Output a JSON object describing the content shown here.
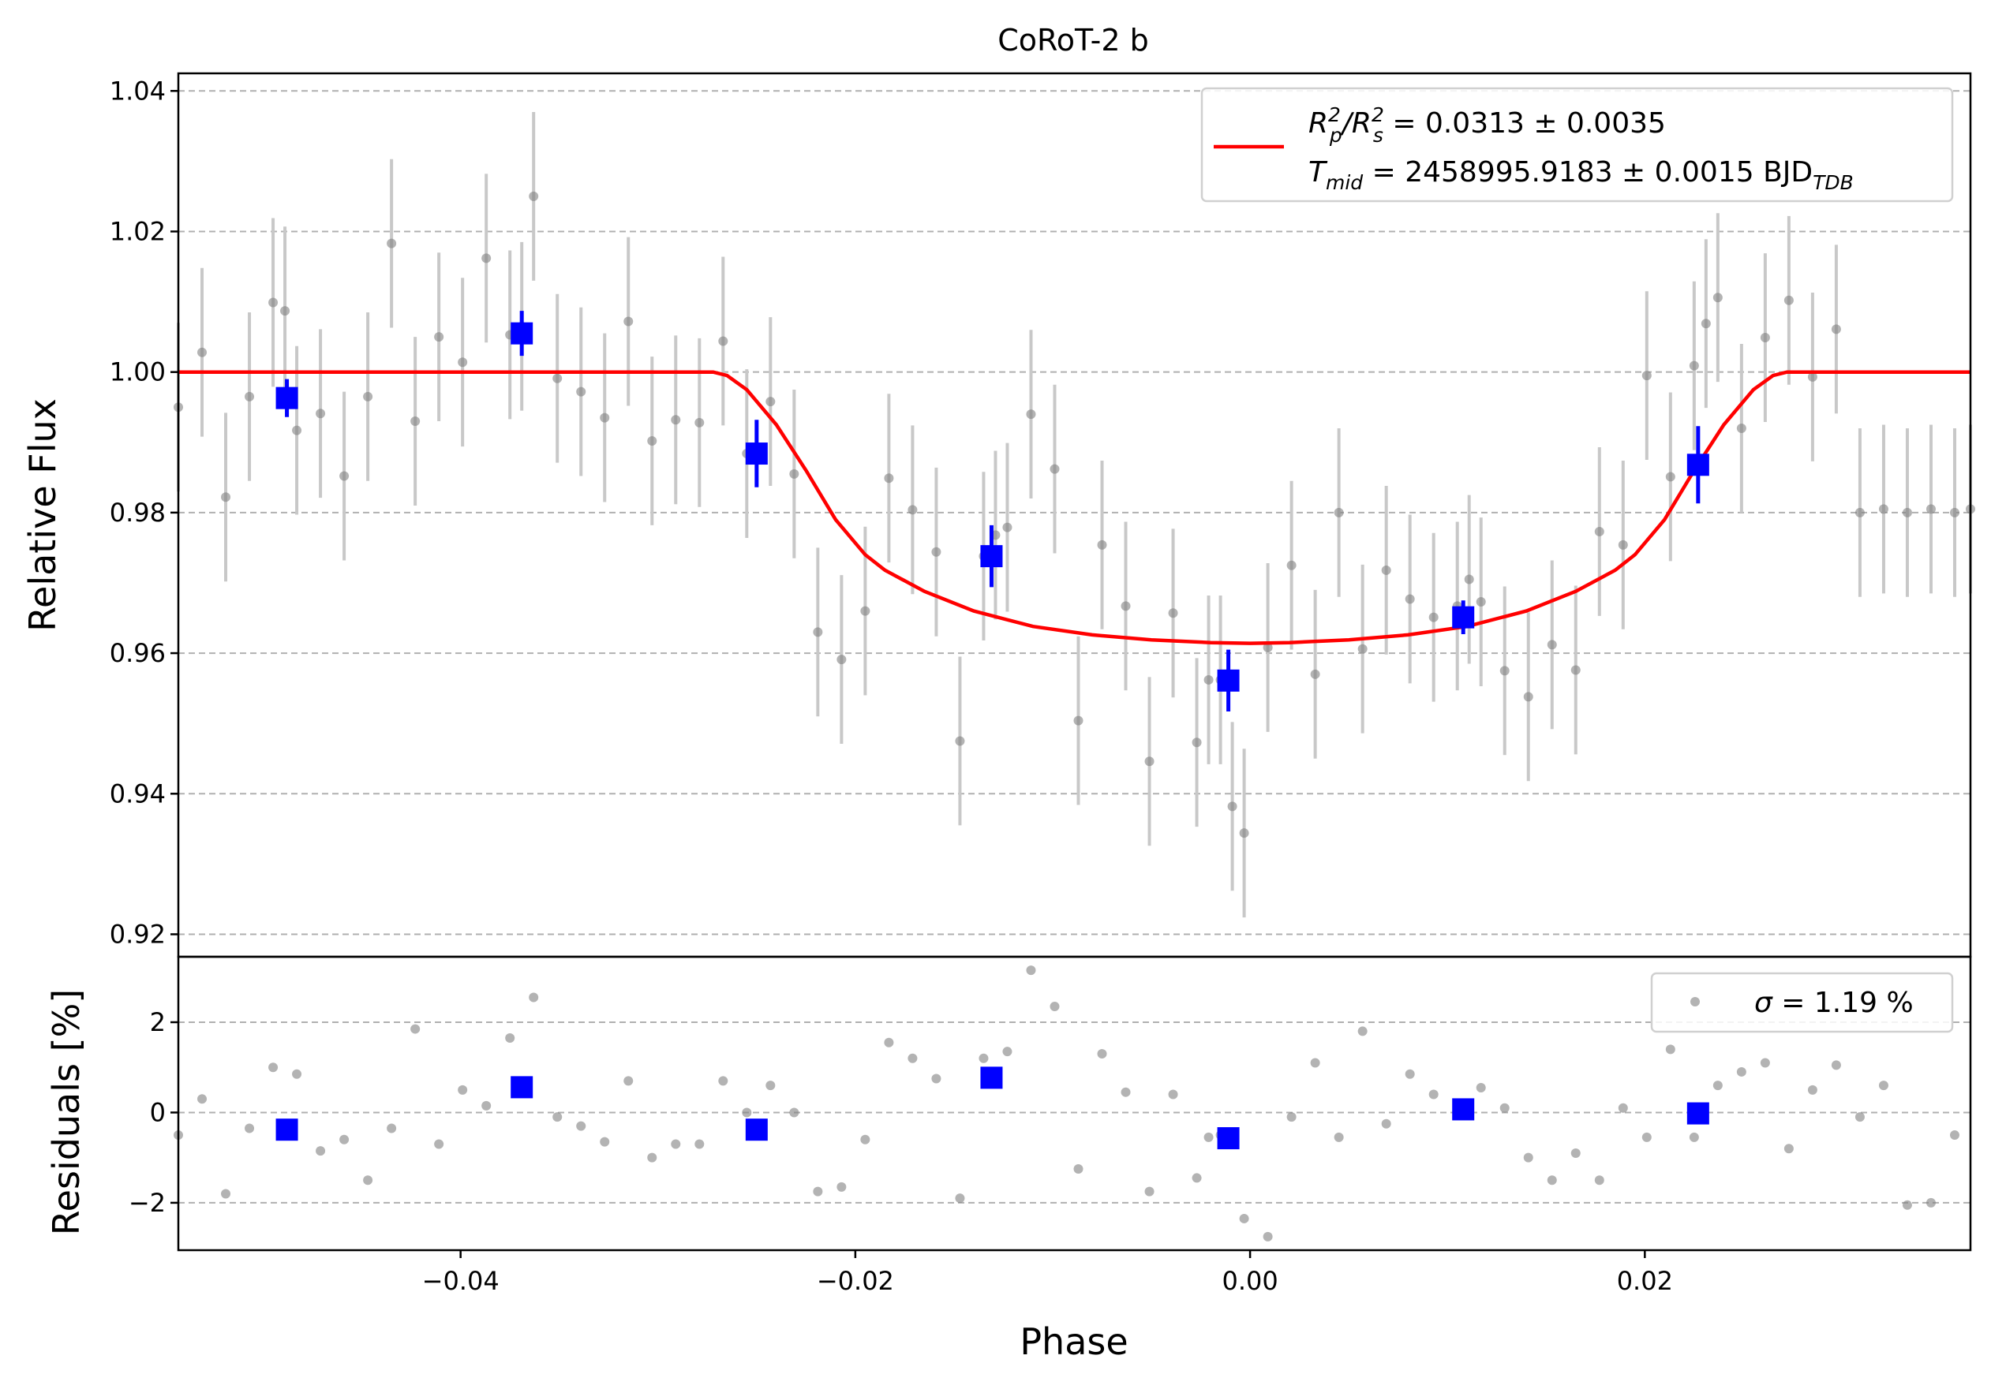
{
  "colors": {
    "raw_points": "#808080",
    "raw_errorbars": "#c8c8c8",
    "binned": "#0000ff",
    "model": "#ff0000",
    "grid": "#b0b0b0",
    "axes": "#000000"
  },
  "chart_data": {
    "title": "CoRoT-2 b",
    "xlabel": "Phase",
    "grid": "horizontal dashed",
    "panels": [
      {
        "id": "lightcurve",
        "type": "scatter",
        "ylabel": "Relative Flux",
        "xlim": [
          -0.0543,
          0.0365
        ],
        "ylim": [
          0.9168,
          1.0425
        ],
        "yticks": [
          {
            "value": 0.92,
            "label": "0.92"
          },
          {
            "value": 0.94,
            "label": "0.94"
          },
          {
            "value": 0.96,
            "label": "0.96"
          },
          {
            "value": 0.98,
            "label": "0.98"
          },
          {
            "value": 1.0,
            "label": "1.00"
          },
          {
            "value": 1.02,
            "label": "1.02"
          },
          {
            "value": 1.04,
            "label": "1.04"
          }
        ],
        "legend_placement": "upper right",
        "legend": {
          "model_line1": {
            "base": "R",
            "sub1": "p",
            "sup1": "2",
            "slash": "/R",
            "sub2": "s",
            "sup2": "2",
            "value": " = 0.0313 ± 0.0035"
          },
          "model_line2": {
            "base": "T",
            "sub1": "mid",
            "value": " = 2458995.9183 ± 0.0015 BJD",
            "sub2": "TDB"
          }
        },
        "raw_series": {
          "x": [
            -0.0543,
            -0.0531,
            -0.0519,
            -0.0507,
            -0.0495,
            -0.0489,
            -0.0483,
            -0.0471,
            -0.0459,
            -0.0447,
            -0.0435,
            -0.0423,
            -0.0411,
            -0.0399,
            -0.0387,
            -0.0375,
            -0.0369,
            -0.0363,
            -0.0351,
            -0.0339,
            -0.0327,
            -0.0315,
            -0.0303,
            -0.0291,
            -0.0279,
            -0.0267,
            -0.0255,
            -0.0243,
            -0.0231,
            -0.0219,
            -0.0207,
            -0.0195,
            -0.0183,
            -0.0171,
            -0.0159,
            -0.0147,
            -0.0135,
            -0.0129,
            -0.0123,
            -0.0111,
            -0.0099,
            -0.0087,
            -0.0075,
            -0.0063,
            -0.0051,
            -0.0039,
            -0.0027,
            -0.0021,
            -0.0015,
            -0.0009,
            -0.0003,
            0.0009,
            0.0021,
            0.0033,
            0.0045,
            0.0057,
            0.0069,
            0.0081,
            0.0093,
            0.0105,
            0.0111,
            0.0117,
            0.0129,
            0.0141,
            0.0153,
            0.0165,
            0.0177,
            0.0189,
            0.0201,
            0.0213,
            0.0225,
            0.0231,
            0.0237,
            0.0249,
            0.0261,
            0.0273,
            0.0285,
            0.0297,
            0.0309,
            0.0321,
            0.0333,
            0.0345,
            0.0357,
            0.0365
          ],
          "y": [
            0.995,
            1.0028,
            0.9822,
            0.9965,
            1.0099,
            1.0087,
            0.9917,
            0.9941,
            0.9852,
            0.9965,
            1.0183,
            0.993,
            1.005,
            1.0014,
            1.0162,
            1.0053,
            1.0065,
            1.025,
            0.9991,
            0.9972,
            0.9935,
            1.0072,
            0.9902,
            0.9932,
            0.9928,
            1.0044,
            0.9884,
            0.9958,
            0.9855,
            0.963,
            0.9591,
            0.966,
            0.9849,
            0.9804,
            0.9744,
            0.9475,
            0.9738,
            0.9768,
            0.9779,
            0.994,
            0.9862,
            0.9504,
            0.9754,
            0.9667,
            0.9446,
            0.9657,
            0.9473,
            0.9562,
            0.9562,
            0.9382,
            0.9344,
            0.9608,
            0.9725,
            0.957,
            0.98,
            0.9606,
            0.9718,
            0.9677,
            0.9651,
            0.9667,
            0.9705,
            0.9673,
            0.9575,
            0.9538,
            0.9612,
            0.9576,
            0.9773,
            0.9754,
            0.9995,
            0.9851,
            1.0009,
            1.0069,
            1.0106,
            0.992,
            1.0049,
            1.0102,
            0.9993,
            1.0061,
            0.98,
            0.9805,
            0.98,
            0.9805,
            0.98,
            0.9805
          ],
          "yerr": 0.012
        },
        "binned_series": {
          "x": [
            -0.0488,
            -0.0369,
            -0.025,
            -0.0131,
            -0.0011,
            0.0108,
            0.0227
          ],
          "y": [
            0.9963,
            1.0055,
            0.9884,
            0.9738,
            0.9561,
            0.9651,
            0.9868
          ],
          "yerr": [
            0.0027,
            0.0032,
            0.0048,
            0.0044,
            0.0044,
            0.0024,
            0.0055
          ]
        },
        "model_series": {
          "x": [
            -0.0543,
            -0.0272,
            -0.0265,
            -0.0255,
            -0.024,
            -0.0225,
            -0.021,
            -0.0195,
            -0.0185,
            -0.0165,
            -0.014,
            -0.011,
            -0.008,
            -0.005,
            -0.002,
            0.0,
            0.002,
            0.005,
            0.008,
            0.011,
            0.014,
            0.0165,
            0.0185,
            0.0195,
            0.021,
            0.0225,
            0.024,
            0.0255,
            0.0265,
            0.0272,
            0.0365
          ],
          "y": [
            1.0,
            1.0,
            0.9995,
            0.9975,
            0.9925,
            0.986,
            0.979,
            0.974,
            0.9718,
            0.9688,
            0.966,
            0.9638,
            0.9626,
            0.9619,
            0.9615,
            0.9614,
            0.9615,
            0.9619,
            0.9626,
            0.9638,
            0.966,
            0.9688,
            0.9718,
            0.974,
            0.979,
            0.986,
            0.9925,
            0.9975,
            0.9995,
            1.0,
            1.0
          ]
        }
      },
      {
        "id": "residuals",
        "type": "scatter",
        "ylabel": "Residuals [%]",
        "xlim": [
          -0.0543,
          0.0365
        ],
        "ylim": [
          -3.05,
          3.45
        ],
        "yticks": [
          {
            "value": -2,
            "label": "−2"
          },
          {
            "value": 0,
            "label": "0"
          },
          {
            "value": 2,
            "label": "2"
          }
        ],
        "xticks": [
          {
            "value": -0.04,
            "label": "−0.04"
          },
          {
            "value": -0.02,
            "label": "−0.02"
          },
          {
            "value": 0.0,
            "label": "0.00"
          },
          {
            "value": 0.02,
            "label": "0.02"
          }
        ],
        "legend_placement": "upper right",
        "legend": {
          "sigma_symbol": "σ",
          "sigma_value": " = 1.19 %"
        },
        "raw_series": {
          "x": [
            -0.0543,
            -0.0531,
            -0.0519,
            -0.0507,
            -0.0495,
            -0.0483,
            -0.0471,
            -0.0459,
            -0.0447,
            -0.0435,
            -0.0423,
            -0.0411,
            -0.0399,
            -0.0387,
            -0.0375,
            -0.0363,
            -0.0351,
            -0.0339,
            -0.0327,
            -0.0315,
            -0.0303,
            -0.0291,
            -0.0279,
            -0.0267,
            -0.0255,
            -0.0243,
            -0.0231,
            -0.0219,
            -0.0207,
            -0.0195,
            -0.0183,
            -0.0171,
            -0.0159,
            -0.0147,
            -0.0135,
            -0.0123,
            -0.0111,
            -0.0099,
            -0.0087,
            -0.0075,
            -0.0063,
            -0.0051,
            -0.0039,
            -0.0027,
            -0.0021,
            -0.0015,
            -0.0003,
            0.0009,
            0.0021,
            0.0033,
            0.0045,
            0.0057,
            0.0069,
            0.0081,
            0.0093,
            0.0105,
            0.0117,
            0.0129,
            0.0141,
            0.0153,
            0.0165,
            0.0177,
            0.0189,
            0.0201,
            0.0213,
            0.0225,
            0.0237,
            0.0249,
            0.0261,
            0.0273,
            0.0285,
            0.0297,
            0.0309,
            0.0321,
            0.0333,
            0.0345,
            0.0357
          ],
          "y": [
            -0.5,
            0.3,
            -1.8,
            -0.35,
            1.0,
            0.85,
            -0.85,
            -0.6,
            -1.5,
            -0.35,
            1.85,
            -0.7,
            0.5,
            0.15,
            1.65,
            2.55,
            -0.1,
            -0.3,
            -0.65,
            0.7,
            -1.0,
            -0.7,
            -0.7,
            0.7,
            0.0,
            0.6,
            0.0,
            -1.75,
            -1.65,
            -0.6,
            1.55,
            1.2,
            0.75,
            -1.9,
            1.2,
            1.35,
            3.15,
            2.35,
            -1.25,
            1.3,
            0.45,
            -1.75,
            0.4,
            -1.45,
            -0.55,
            -0.5,
            -2.35,
            -2.75,
            -0.1,
            1.1,
            -0.55,
            1.8,
            -0.25,
            0.85,
            0.4,
            0.05,
            0.55,
            0.1,
            -1.0,
            -1.5,
            -0.9,
            -1.5,
            0.1,
            -0.55,
            1.4,
            -0.55,
            0.6,
            0.9,
            1.1,
            -0.8,
            0.5,
            1.05,
            -0.1,
            0.6,
            -2.05,
            -2.0,
            -0.5
          ],
          "shown_as_gray_dots": true
        },
        "binned_series": {
          "x": [
            -0.0488,
            -0.0369,
            -0.025,
            -0.0131,
            -0.0011,
            0.0108,
            0.0227
          ],
          "y": [
            -0.38,
            0.56,
            -0.38,
            0.77,
            -0.57,
            0.07,
            -0.02
          ]
        }
      }
    ]
  }
}
